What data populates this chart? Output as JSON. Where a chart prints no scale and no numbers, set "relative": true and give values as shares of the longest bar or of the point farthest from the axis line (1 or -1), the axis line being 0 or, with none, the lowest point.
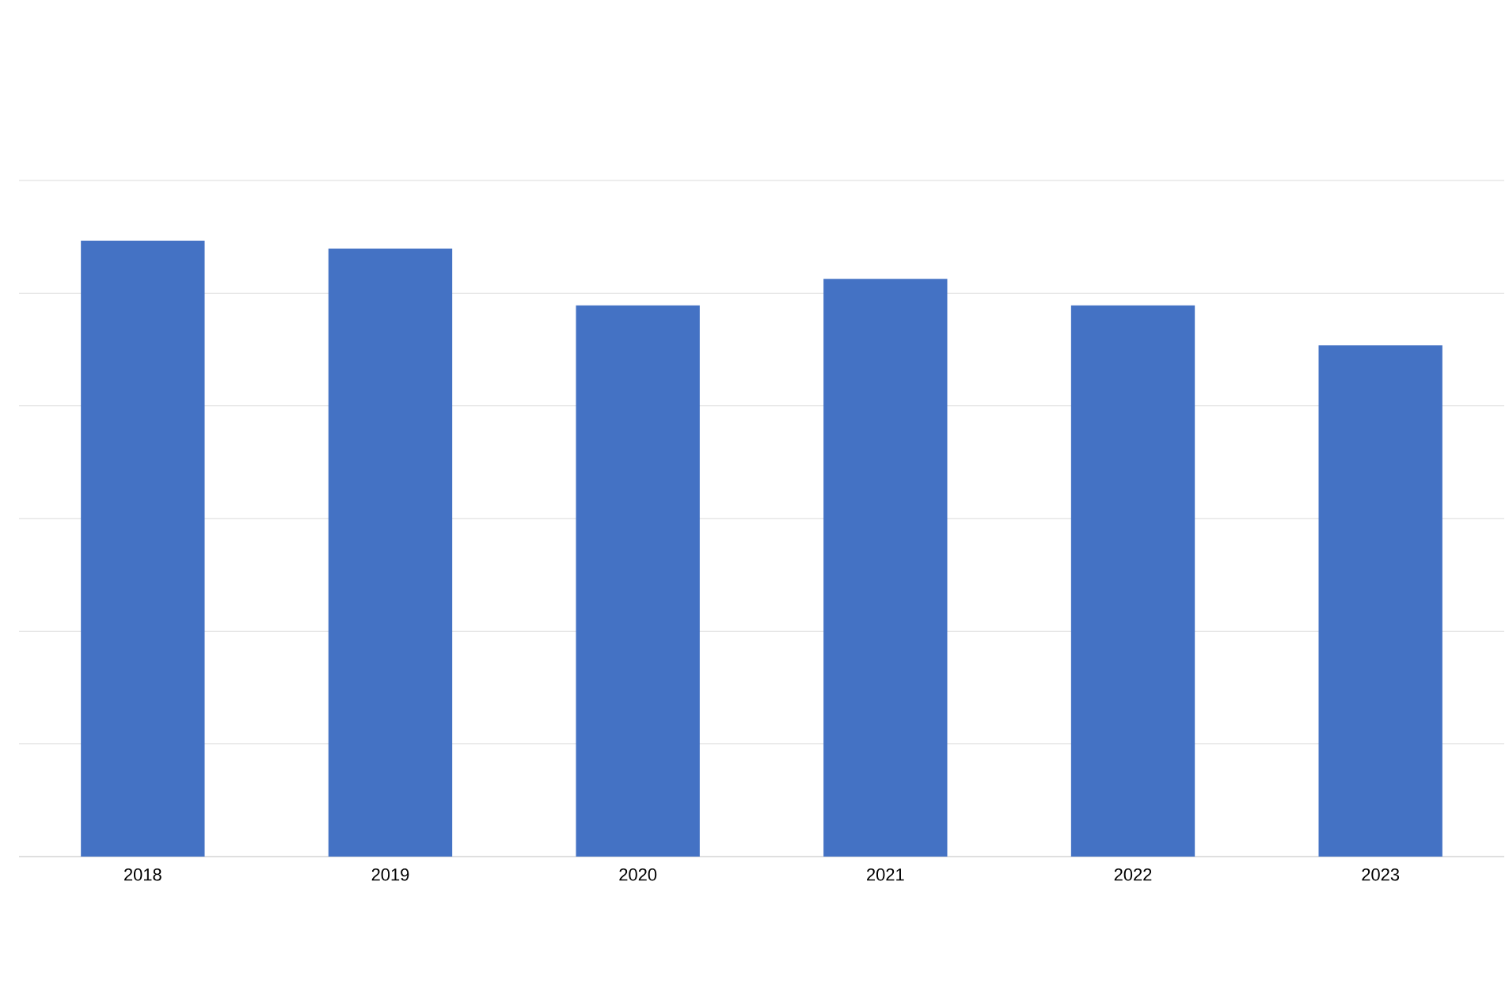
{
  "chart_data": {
    "type": "bar",
    "categories": [
      "2018",
      "2019",
      "2020",
      "2021",
      "2022",
      "2023"
    ],
    "values": [
      1,
      0.987,
      0.895,
      0.938,
      0.895,
      0.83
    ],
    "color": "#4472c4",
    "relative": true,
    "grid": "y"
  }
}
